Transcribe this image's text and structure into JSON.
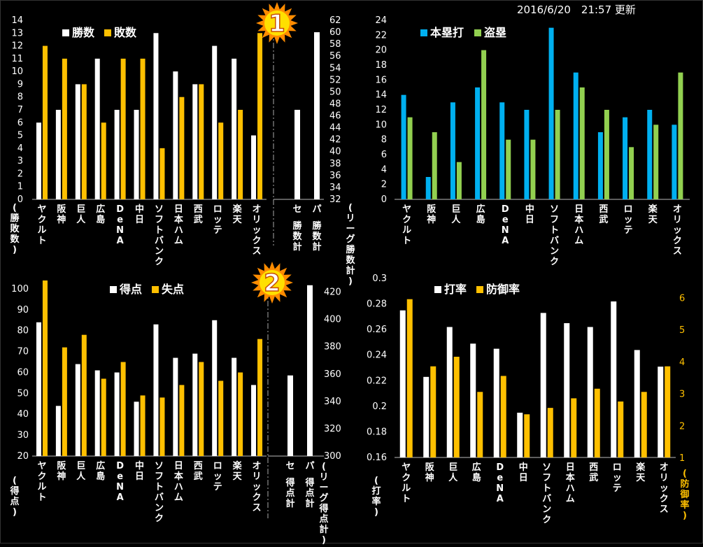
{
  "timestamp": "2016/6/20　21:57 更新",
  "colors": {
    "white": "#ffffff",
    "orange": "#ffc000",
    "blue": "#00b0f0",
    "green": "#92d050",
    "bg": "#000000",
    "badge_fill": "#ff8c00",
    "badge_center": "#ffe000"
  },
  "badges": [
    {
      "label": "1"
    },
    {
      "label": "2"
    }
  ],
  "chart_data": [
    {
      "type": "bar",
      "categories": [
        "ヤクルト",
        "阪神",
        "巨人",
        "広島",
        "DeNA",
        "中日",
        "ソフトバンク",
        "日本ハム",
        "西武",
        "ロッテ",
        "楽天",
        "オリックス"
      ],
      "series": [
        {
          "name": "勝数",
          "color": "#ffffff",
          "values": [
            6,
            7,
            9,
            11,
            7,
            7,
            13,
            10,
            9,
            12,
            11,
            5
          ]
        },
        {
          "name": "敗数",
          "color": "#ffc000",
          "values": [
            12,
            11,
            9,
            6,
            11,
            11,
            4,
            8,
            9,
            6,
            7,
            13
          ]
        }
      ],
      "ylim": [
        0,
        14
      ],
      "yticks": [
        "0",
        "1",
        "2",
        "3",
        "4",
        "5",
        "6",
        "7",
        "8",
        "9",
        "10",
        "11",
        "12",
        "13",
        "14"
      ],
      "ylabel": "(勝敗数)",
      "secondary": {
        "categories": [
          "セ\n勝数計",
          "パ\n勝数計"
        ],
        "values": [
          47,
          60
        ],
        "ylim": [
          32,
          62
        ],
        "yticks": [
          "32",
          "34",
          "36",
          "38",
          "40",
          "42",
          "44",
          "46",
          "48",
          "50",
          "52",
          "54",
          "56",
          "58",
          "60",
          "62"
        ],
        "ylabel": "(リーグ勝数計)"
      }
    },
    {
      "type": "bar",
      "categories": [
        "ヤクルト",
        "阪神",
        "巨人",
        "広島",
        "DeNA",
        "中日",
        "ソフトバンク",
        "日本ハム",
        "西武",
        "ロッテ",
        "楽天",
        "オリックス"
      ],
      "series": [
        {
          "name": "本塁打",
          "color": "#00b0f0",
          "values": [
            14,
            3,
            13,
            15,
            13,
            12,
            23,
            17,
            9,
            11,
            12,
            10
          ]
        },
        {
          "name": "盗塁",
          "color": "#92d050",
          "values": [
            11,
            9,
            5,
            20,
            8,
            8,
            12,
            15,
            12,
            7,
            10,
            17
          ]
        }
      ],
      "ylim": [
        0,
        24
      ],
      "yticks": [
        "0",
        "2",
        "4",
        "6",
        "8",
        "10",
        "12",
        "14",
        "16",
        "18",
        "20",
        "22",
        "24"
      ]
    },
    {
      "type": "bar",
      "categories": [
        "ヤクルト",
        "阪神",
        "巨人",
        "広島",
        "DeNA",
        "中日",
        "ソフトバンク",
        "日本ハム",
        "西武",
        "ロッテ",
        "楽天",
        "オリックス"
      ],
      "series": [
        {
          "name": "得点",
          "color": "#ffffff",
          "values": [
            84,
            44,
            64,
            61,
            60,
            46,
            83,
            67,
            69,
            85,
            67,
            54
          ]
        },
        {
          "name": "失点",
          "color": "#ffc000",
          "values": [
            104,
            72,
            78,
            57,
            65,
            49,
            48,
            54,
            65,
            56,
            60,
            76
          ]
        }
      ],
      "ylim": [
        20,
        105
      ],
      "yticks": [
        "20",
        "30",
        "40",
        "50",
        "60",
        "70",
        "80",
        "90",
        "100"
      ],
      "ylabel": "(得点)",
      "secondary": {
        "categories": [
          "セ\n得点計",
          "パ\n得点計"
        ],
        "values": [
          359,
          425
        ],
        "ylim": [
          300,
          430
        ],
        "yticks": [
          "300",
          "320",
          "340",
          "360",
          "380",
          "400",
          "420"
        ],
        "ylabel": "(リーグ得点計)"
      }
    },
    {
      "type": "bar",
      "categories": [
        "ヤクルト",
        "阪神",
        "巨人",
        "広島",
        "DeNA",
        "中日",
        "ソフトバンク",
        "日本ハム",
        "西武",
        "ロッテ",
        "楽天",
        "オリックス"
      ],
      "series": [
        {
          "name": "打率",
          "color": "#ffffff",
          "axis": "left",
          "values": [
            0.275,
            0.223,
            0.262,
            0.249,
            0.245,
            0.195,
            0.273,
            0.265,
            0.262,
            0.282,
            0.244,
            0.231
          ]
        },
        {
          "name": "防御率",
          "color": "#ffc000",
          "axis": "right",
          "values": [
            5.95,
            3.85,
            4.15,
            3.05,
            3.55,
            2.35,
            2.55,
            2.85,
            3.15,
            2.75,
            3.05,
            3.85
          ]
        }
      ],
      "ylim": [
        0.16,
        0.3
      ],
      "yticks": [
        "0.16",
        "0.18",
        "0.2",
        "0.22",
        "0.24",
        "0.26",
        "0.28",
        "0.3"
      ],
      "ylabel": "(打率)",
      "y2lim": [
        1,
        6.6
      ],
      "y2ticks": [
        "1",
        "2",
        "3",
        "4",
        "5",
        "6"
      ],
      "y2label": "(防御率)"
    }
  ]
}
